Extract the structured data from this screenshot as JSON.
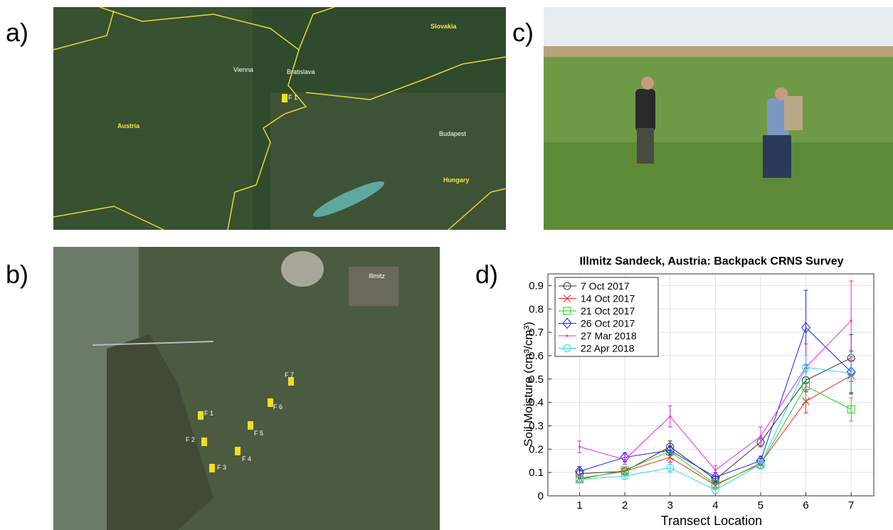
{
  "panels": {
    "a": "a)",
    "b": "b)",
    "c": "c)",
    "d": "d)"
  },
  "map_a": {
    "labels": [
      "Slovakia",
      "Vienna",
      "Bratislava",
      "F 1",
      "Austria",
      "Budapest",
      "Hungary"
    ]
  },
  "map_b": {
    "labels": [
      "Illmitz",
      "F 1",
      "F 2",
      "F 3",
      "F 4",
      "F 5",
      "F 6",
      "F 7"
    ]
  },
  "chart_data": {
    "type": "line",
    "title": "Illmitz Sandeck, Austria: Backpack CRNS Survey",
    "x_label": "Transect Location",
    "y_label": "Soil Moisture (cm³/cm³)",
    "x": [
      1,
      2,
      3,
      4,
      5,
      6,
      7
    ],
    "xlim": [
      0.3,
      7.5
    ],
    "xticks": [
      1,
      2,
      3,
      4,
      5,
      6,
      7
    ],
    "ylim": [
      0,
      0.95
    ],
    "yticks": [
      0,
      0.1,
      0.2,
      0.3,
      0.4,
      0.5,
      0.6,
      0.7,
      0.8,
      0.9
    ],
    "grid": true,
    "legend": "upper-left",
    "series": [
      {
        "name": "7 Oct 2017",
        "color": "#333333",
        "marker": "circle",
        "values": [
          0.095,
          0.105,
          0.21,
          0.07,
          0.23,
          0.495,
          0.59
        ],
        "errors": [
          0.02,
          0.02,
          0.025,
          0.02,
          0.02,
          0.05,
          0.1
        ]
      },
      {
        "name": "14 Oct 2017",
        "color": "#ff2020",
        "marker": "x",
        "values": [
          0.075,
          0.105,
          0.165,
          0.045,
          0.14,
          0.405,
          0.515
        ],
        "errors": [
          0.015,
          0.015,
          0.02,
          0.015,
          0.02,
          0.05,
          0.08
        ]
      },
      {
        "name": "21 Oct 2017",
        "color": "#22cc22",
        "marker": "square",
        "values": [
          0.07,
          0.11,
          0.19,
          0.05,
          0.135,
          0.47,
          0.37
        ],
        "errors": [
          0.015,
          0.015,
          0.02,
          0.015,
          0.02,
          0.06,
          0.05
        ]
      },
      {
        "name": "26 Oct 2017",
        "color": "#2020ff",
        "marker": "diamond",
        "values": [
          0.105,
          0.165,
          0.195,
          0.08,
          0.15,
          0.72,
          0.53
        ],
        "errors": [
          0.02,
          0.02,
          0.02,
          0.02,
          0.02,
          0.16,
          0.09
        ]
      },
      {
        "name": "27 Mar 2018",
        "color": "#ee22ee",
        "marker": "point",
        "values": [
          0.21,
          0.155,
          0.34,
          0.11,
          0.255,
          0.55,
          0.75
        ],
        "errors": [
          0.025,
          0.02,
          0.045,
          0.02,
          0.04,
          0.1,
          0.17
        ]
      },
      {
        "name": "22 Apr 2018",
        "color": "#22dddd",
        "marker": "circle",
        "values": [
          0.07,
          0.085,
          0.12,
          0.025,
          0.135,
          0.55,
          0.525
        ],
        "errors": [
          0.015,
          0.015,
          0.02,
          0.015,
          0.02,
          0.05,
          0.08
        ]
      }
    ]
  }
}
